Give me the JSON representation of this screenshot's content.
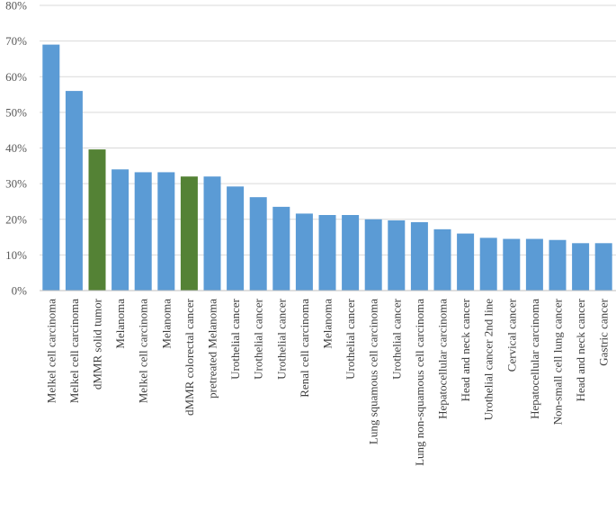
{
  "chart_data": {
    "type": "bar",
    "title": "",
    "xlabel": "",
    "ylabel": "",
    "ylim": [
      0,
      80
    ],
    "yticks": [
      0,
      10,
      20,
      30,
      40,
      50,
      60,
      70,
      80
    ],
    "ytick_suffix": "%",
    "grid": true,
    "colors": {
      "default": "#5b9bd5",
      "highlight": "#548235"
    },
    "categories": [
      "Melkel cell carcinoma",
      "Melkel cell carcinoma",
      "dMMR solid tumor",
      "Melanoma",
      "Melkel cell carcinoma",
      "Melanoma",
      "dMMR colorectal cancer",
      "pretreated Melanoma",
      "Urothelial cancer",
      "Urothelial cancer",
      "Urothelial cancer",
      "Renal cell carcinoma",
      "Melanoma",
      "Urothelial cancer",
      "Lung squamous cell carcinoma",
      "Urothelial cancer",
      "Lung non-squamous cell carcinoma",
      "Hepatocellular carcinoma",
      "Head and neck cancer",
      "Urothelial cancer 2nd line",
      "Cervical cancer",
      "Hepatocellular carcinoma",
      "Non-small cell lung cancer",
      "Head and neck cancer",
      "Gastric cancer"
    ],
    "values": [
      69,
      56,
      39.6,
      34,
      33.2,
      33.2,
      32,
      32,
      29.2,
      26.2,
      23.5,
      21.6,
      21.2,
      21.2,
      20,
      19.7,
      19.2,
      17.2,
      16,
      14.8,
      14.5,
      14.5,
      14.2,
      13.3,
      13.3
    ],
    "highlight_indices": [
      2,
      6
    ]
  }
}
